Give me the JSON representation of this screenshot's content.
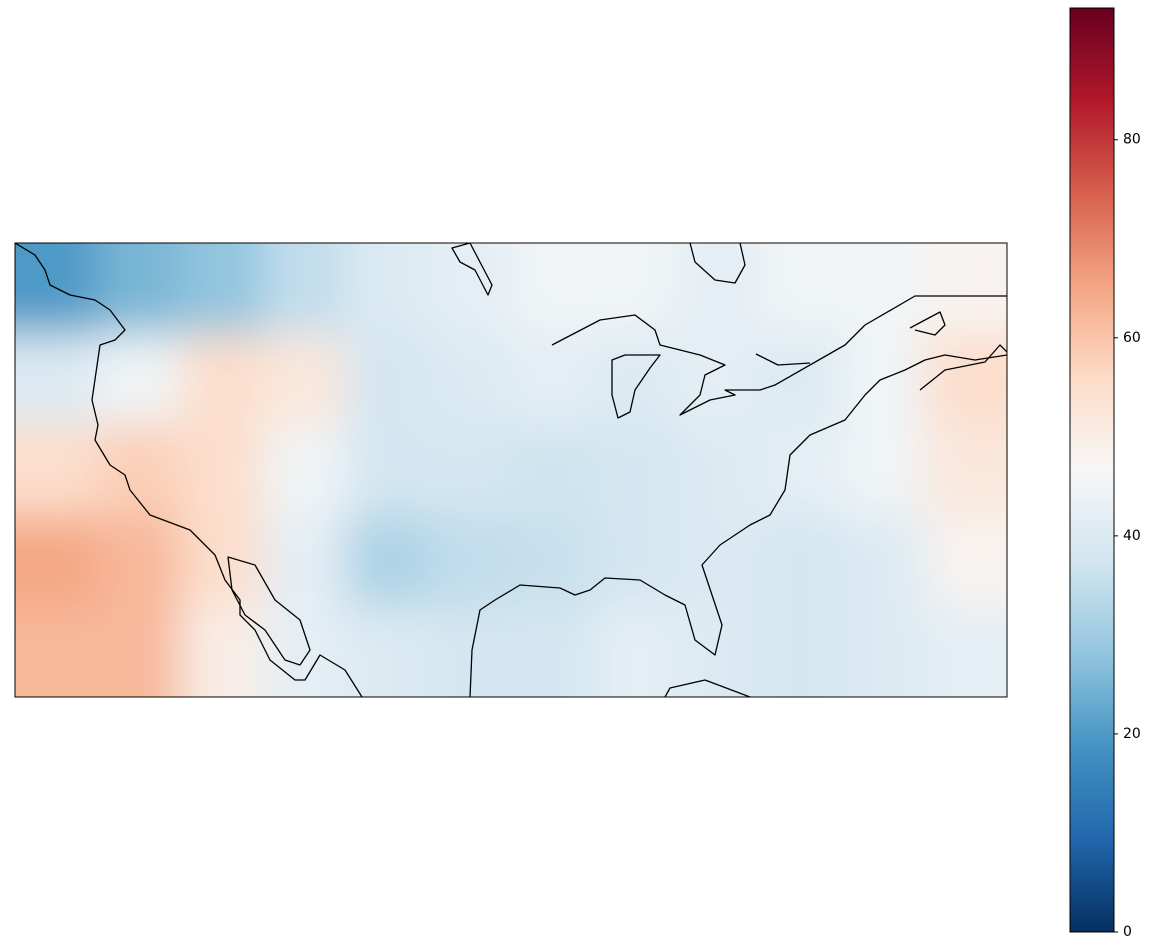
{
  "chart_data": {
    "type": "heatmap",
    "colormap": [
      "#053061",
      "#2166ac",
      "#4393c3",
      "#92c5de",
      "#d1e5f0",
      "#f7f7f7",
      "#fddbc7",
      "#f4a582",
      "#d6604d",
      "#b2182b",
      "#67001f"
    ],
    "clim": [
      0,
      93.3
    ],
    "cticks": [
      0,
      20,
      40,
      60,
      80
    ],
    "values": [
      [
        20,
        25,
        28,
        35,
        40,
        42,
        45,
        45,
        42,
        45,
        45,
        48
      ],
      [
        40,
        45,
        55,
        52,
        38,
        40,
        42,
        40,
        42,
        40,
        45,
        55
      ],
      [
        55,
        58,
        55,
        45,
        38,
        38,
        37,
        38,
        40,
        42,
        45,
        52
      ],
      [
        65,
        62,
        55,
        42,
        32,
        35,
        36,
        38,
        40,
        38,
        40,
        48
      ],
      [
        62,
        62,
        50,
        42,
        40,
        38,
        38,
        42,
        40,
        38,
        40,
        42
      ]
    ]
  }
}
